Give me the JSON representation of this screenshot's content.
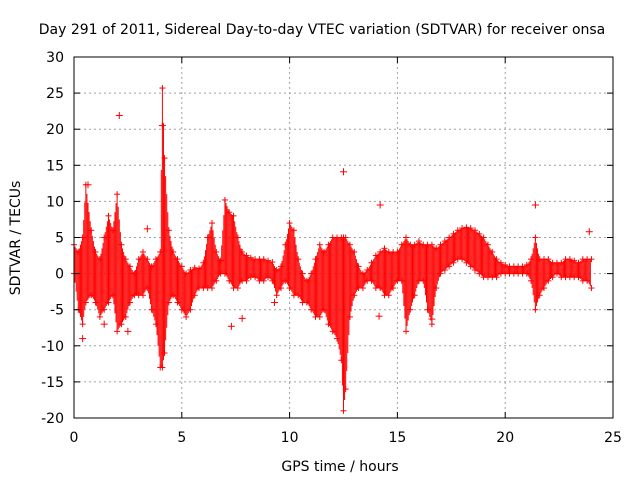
{
  "chart_data": {
    "type": "scatter",
    "title": "Day 291 of 2011, Sidereal Day-to-day VTEC variation (SDTVAR) for receiver onsa",
    "xlabel": "GPS time / hours",
    "ylabel": "SDTVAR / TECUs",
    "xlim": [
      0,
      25
    ],
    "ylim": [
      -20,
      30
    ],
    "xticks": [
      0,
      5,
      10,
      15,
      20,
      25
    ],
    "yticks": [
      -20,
      -15,
      -10,
      -5,
      0,
      5,
      10,
      15,
      20,
      25,
      30
    ],
    "grid": true,
    "marker": "+",
    "color": "#ff0000",
    "band_segments": [
      [
        0.0,
        0,
        4
      ],
      [
        0.2,
        -5,
        3
      ],
      [
        0.4,
        -7,
        5
      ],
      [
        0.55,
        -4,
        12.3
      ],
      [
        0.8,
        -3,
        6
      ],
      [
        1.0,
        -4,
        3
      ],
      [
        1.2,
        -6,
        2
      ],
      [
        1.4,
        -5,
        5
      ],
      [
        1.6,
        -4,
        8
      ],
      [
        1.8,
        -3,
        6
      ],
      [
        2.0,
        -8,
        11
      ],
      [
        2.2,
        -7,
        4
      ],
      [
        2.4,
        -6,
        2
      ],
      [
        2.6,
        -4,
        1
      ],
      [
        2.8,
        -3,
        0
      ],
      [
        3.0,
        -3,
        2
      ],
      [
        3.2,
        -3,
        3
      ],
      [
        3.4,
        -2,
        2
      ],
      [
        3.6,
        -5,
        1
      ],
      [
        3.8,
        -7,
        2
      ],
      [
        4.0,
        -13,
        3
      ],
      [
        4.1,
        -13,
        25.7
      ],
      [
        4.2,
        -11,
        16
      ],
      [
        4.4,
        -4,
        6
      ],
      [
        4.6,
        -3,
        3
      ],
      [
        4.8,
        -4,
        2
      ],
      [
        5.0,
        -5,
        1
      ],
      [
        5.2,
        -6,
        0
      ],
      [
        5.4,
        -5,
        0.5
      ],
      [
        5.6,
        -3,
        0.8
      ],
      [
        5.8,
        -2,
        0.7
      ],
      [
        6.0,
        -2,
        1.5
      ],
      [
        6.2,
        -2,
        5
      ],
      [
        6.4,
        -2,
        7
      ],
      [
        6.6,
        -1,
        3
      ],
      [
        6.8,
        0,
        1.8
      ],
      [
        7.0,
        0,
        10.2
      ],
      [
        7.2,
        -1,
        8.5
      ],
      [
        7.4,
        -2,
        8
      ],
      [
        7.6,
        -2,
        5
      ],
      [
        7.8,
        -1,
        3
      ],
      [
        8.0,
        -1,
        2.5
      ],
      [
        8.2,
        -0.5,
        2.2
      ],
      [
        8.4,
        -0.5,
        2
      ],
      [
        8.6,
        -1,
        2
      ],
      [
        8.8,
        -1,
        2
      ],
      [
        9.0,
        -0.5,
        1.8
      ],
      [
        9.2,
        -1,
        1.6
      ],
      [
        9.4,
        -3,
        0.5
      ],
      [
        9.6,
        -2,
        1
      ],
      [
        9.8,
        -1,
        4
      ],
      [
        10.0,
        -2,
        7
      ],
      [
        10.2,
        -3,
        6
      ],
      [
        10.4,
        -3,
        2
      ],
      [
        10.6,
        -4,
        0
      ],
      [
        10.8,
        -4,
        -1
      ],
      [
        11.0,
        -5,
        0
      ],
      [
        11.2,
        -6,
        2
      ],
      [
        11.4,
        -6,
        4
      ],
      [
        11.6,
        -5,
        3
      ],
      [
        11.8,
        -7,
        4
      ],
      [
        12.0,
        -8,
        5
      ],
      [
        12.2,
        -9,
        5
      ],
      [
        12.4,
        -12,
        5
      ],
      [
        12.5,
        -19,
        5
      ],
      [
        12.6,
        -16,
        5
      ],
      [
        12.8,
        -6,
        4
      ],
      [
        13.0,
        -3,
        3
      ],
      [
        13.2,
        -2,
        1
      ],
      [
        13.4,
        -2,
        0
      ],
      [
        13.6,
        -1,
        0.5
      ],
      [
        13.8,
        -1,
        1.5
      ],
      [
        14.0,
        -2,
        2.5
      ],
      [
        14.2,
        -2,
        3
      ],
      [
        14.4,
        -3,
        3.5
      ],
      [
        14.6,
        -3,
        3
      ],
      [
        14.8,
        -2,
        3
      ],
      [
        15.0,
        -1,
        3
      ],
      [
        15.2,
        -1,
        4
      ],
      [
        15.4,
        -8,
        5
      ],
      [
        15.6,
        -5,
        4
      ],
      [
        15.8,
        -3,
        4
      ],
      [
        16.0,
        -1,
        4.5
      ],
      [
        16.2,
        -1,
        4
      ],
      [
        16.4,
        -5,
        4
      ],
      [
        16.6,
        -7,
        4
      ],
      [
        16.8,
        -2,
        3.5
      ],
      [
        17.0,
        0,
        4
      ],
      [
        17.2,
        0.5,
        4.5
      ],
      [
        17.4,
        1,
        5
      ],
      [
        17.6,
        1.5,
        5.5
      ],
      [
        17.8,
        2,
        6
      ],
      [
        18.0,
        2,
        6.3
      ],
      [
        18.2,
        1.5,
        6.4
      ],
      [
        18.4,
        1,
        6.3
      ],
      [
        18.6,
        0.5,
        6
      ],
      [
        18.8,
        0,
        5.5
      ],
      [
        19.0,
        -0.5,
        5
      ],
      [
        19.2,
        -0.5,
        4
      ],
      [
        19.4,
        -0.5,
        3
      ],
      [
        19.6,
        -0.5,
        2
      ],
      [
        19.8,
        0,
        1.5
      ],
      [
        20.0,
        0,
        1.2
      ],
      [
        20.2,
        0,
        1
      ],
      [
        20.4,
        0,
        1
      ],
      [
        20.6,
        0,
        1
      ],
      [
        20.8,
        0,
        1
      ],
      [
        21.0,
        0,
        1.2
      ],
      [
        21.2,
        -1,
        2
      ],
      [
        21.4,
        -5,
        5
      ],
      [
        21.6,
        -3,
        2
      ],
      [
        21.8,
        -2,
        2
      ],
      [
        22.0,
        -1,
        2
      ],
      [
        22.2,
        -0.5,
        1.5
      ],
      [
        22.4,
        0,
        1.5
      ],
      [
        22.6,
        -0.5,
        1.5
      ],
      [
        22.8,
        -0.5,
        2
      ],
      [
        23.0,
        -0.5,
        2
      ],
      [
        23.2,
        -0.5,
        1.8
      ],
      [
        23.4,
        -0.5,
        1.5
      ],
      [
        23.6,
        -1,
        2
      ],
      [
        23.8,
        -1,
        2
      ],
      [
        24.0,
        -2,
        2
      ]
    ],
    "outliers": [
      [
        2.1,
        21.9
      ],
      [
        3.4,
        6.2
      ],
      [
        12.5,
        14.1
      ],
      [
        14.2,
        9.5
      ],
      [
        14.15,
        -5.9
      ],
      [
        21.4,
        9.5
      ],
      [
        23.9,
        5.8
      ],
      [
        7.3,
        -7.3
      ],
      [
        7.8,
        -6.2
      ],
      [
        16.6,
        -6.3
      ],
      [
        4.1,
        20.5
      ],
      [
        0.65,
        12.3
      ],
      [
        2.5,
        -8.0
      ],
      [
        0.4,
        -9.0
      ],
      [
        1.4,
        -7.0
      ],
      [
        9.3,
        -4.0
      ]
    ]
  }
}
